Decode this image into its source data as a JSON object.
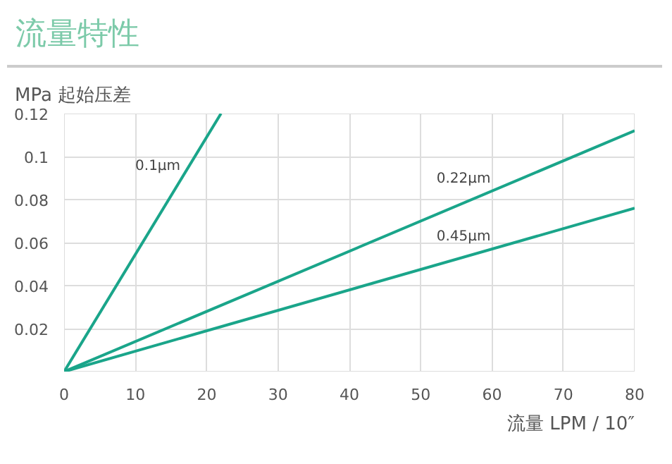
{
  "chart_data": {
    "type": "line",
    "title": "流量特性",
    "ylabel": "MPa 起始压差",
    "xlabel": "流量 LPM / 10″",
    "series": [
      {
        "name": "0.1μm",
        "color": "#1aa58a",
        "x": [
          0,
          22
        ],
        "values": [
          0,
          0.12
        ]
      },
      {
        "name": "0.22μm",
        "color": "#1aa58a",
        "x": [
          0,
          80
        ],
        "values": [
          0,
          0.112
        ]
      },
      {
        "name": "0.45μm",
        "color": "#1aa58a",
        "x": [
          0,
          80
        ],
        "values": [
          0,
          0.076
        ]
      }
    ],
    "xlim": [
      0,
      80
    ],
    "xticks": [
      0,
      10,
      20,
      30,
      40,
      50,
      60,
      70,
      80
    ],
    "ylim": [
      0,
      0.12
    ],
    "yticks": [
      0.02,
      0.04,
      0.06,
      0.08,
      0.1,
      0.12
    ],
    "grid": true,
    "marker": "none",
    "line_style": "solid"
  }
}
